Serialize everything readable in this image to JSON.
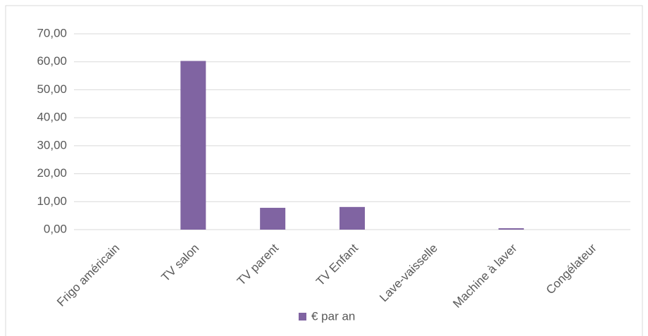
{
  "chart_data": {
    "type": "bar",
    "categories": [
      "Frigo américain",
      "TV salon",
      "TV parent",
      "TV Enfant",
      "Lave-vaisselle",
      "Machine à laver",
      "Congélateur"
    ],
    "series": [
      {
        "name": "€ par an",
        "color": "#8064a2",
        "values": [
          0,
          60.3,
          7.8,
          8.1,
          0,
          0.5,
          0
        ]
      }
    ],
    "ylim": [
      0,
      70
    ],
    "yticks": [
      {
        "value": 0,
        "label": "0,00"
      },
      {
        "value": 10,
        "label": "10,00"
      },
      {
        "value": 20,
        "label": "20,00"
      },
      {
        "value": 30,
        "label": "30,00"
      },
      {
        "value": 40,
        "label": "40,00"
      },
      {
        "value": 50,
        "label": "50,00"
      },
      {
        "value": 60,
        "label": "60,00"
      },
      {
        "value": 70,
        "label": "70,00"
      }
    ],
    "grid": true,
    "legend": "bottom"
  }
}
